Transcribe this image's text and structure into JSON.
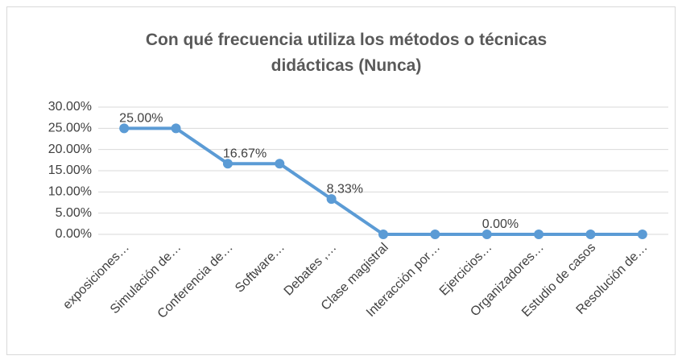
{
  "chart_data": {
    "type": "line",
    "title": "Con qué frecuencia utiliza los métodos o técnicas didácticas (Nunca)",
    "categories": [
      "exposiciones…",
      "Simulación de…",
      "Conferencia de…",
      "Software…",
      "Debates ,…",
      "Clase magistral",
      "Interacción  por…",
      "Ejercicios…",
      "Organizadores…",
      "Estudio de casos",
      "Resolución de…"
    ],
    "values": [
      25,
      25,
      16.67,
      16.67,
      8.33,
      0,
      0,
      0,
      0,
      0,
      0
    ],
    "value_labels": [
      "25.00%",
      null,
      "16.67%",
      null,
      "8.33%",
      null,
      null,
      "0.00%",
      null,
      null,
      null
    ],
    "color": "#5b9bd5",
    "ylim": [
      0,
      30
    ],
    "yticks": [
      {
        "value": 0,
        "label": "0.00%"
      },
      {
        "value": 5,
        "label": "5.00%"
      },
      {
        "value": 10,
        "label": "10.00%"
      },
      {
        "value": 15,
        "label": "15.00%"
      },
      {
        "value": 20,
        "label": "20.00%"
      },
      {
        "value": 25,
        "label": "25.00%"
      },
      {
        "value": 30,
        "label": "30.00%"
      }
    ],
    "grid": true
  }
}
